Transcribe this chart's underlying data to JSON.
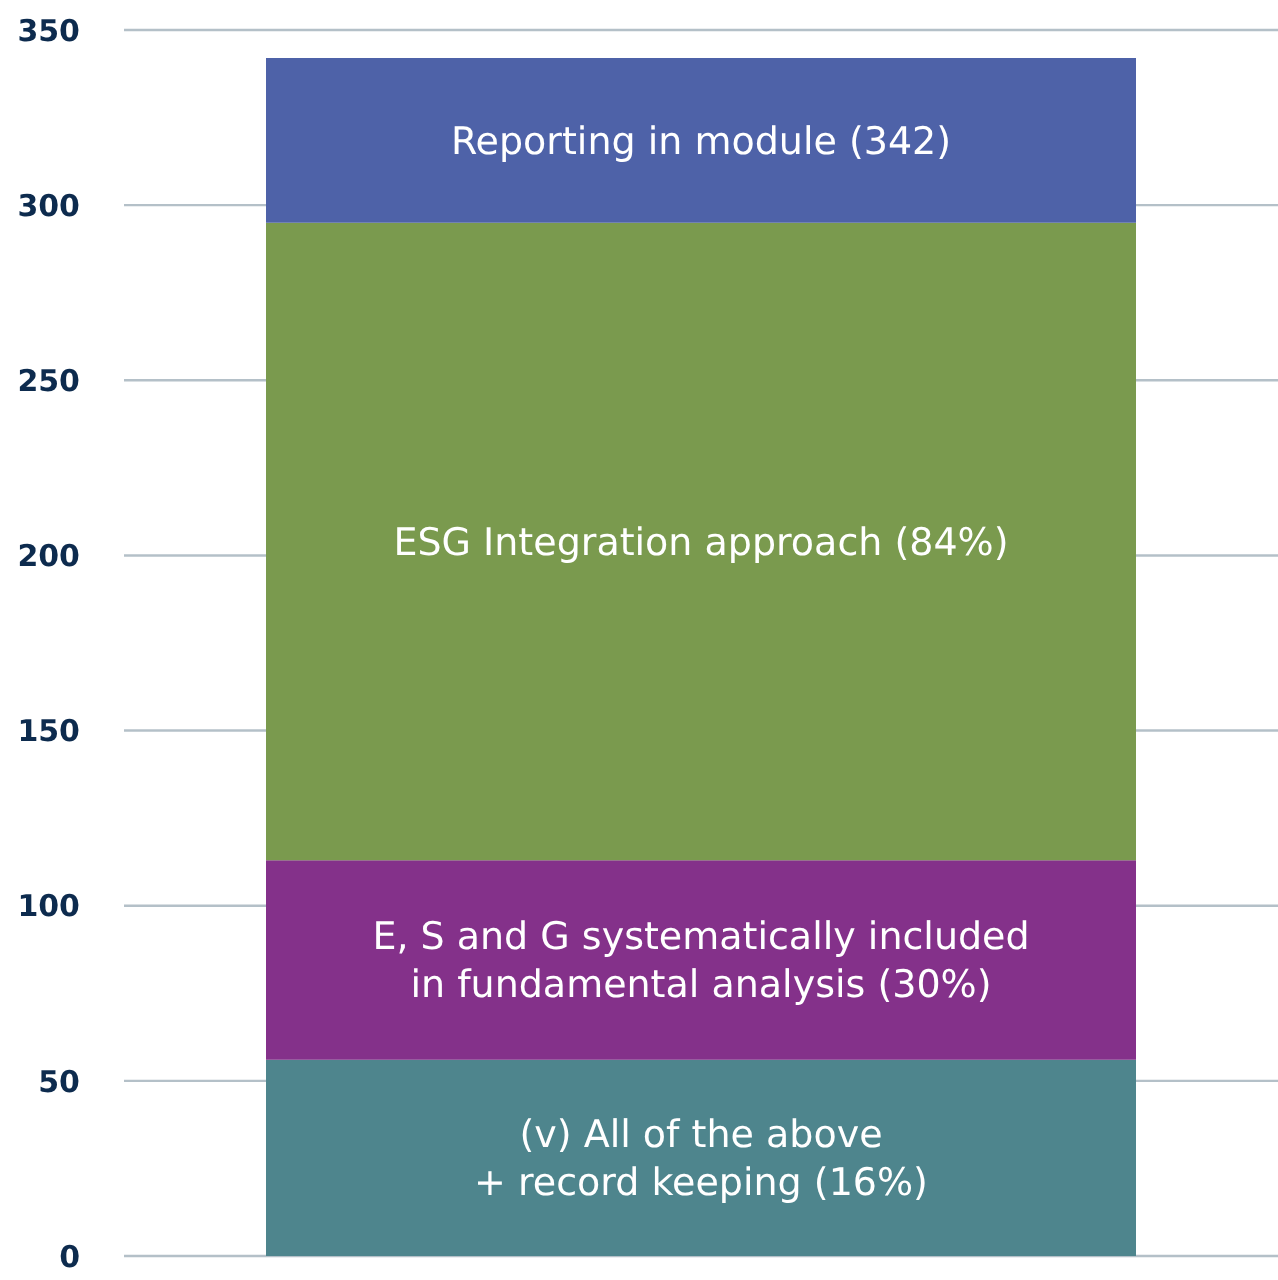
{
  "chart_data": {
    "type": "bar",
    "stacked": true,
    "categories": [
      null
    ],
    "series": [
      {
        "name": "(v) All of the above\n+ record keeping (16%)",
        "color": "#4e858d",
        "values": [
          56
        ]
      },
      {
        "name": "E, S and G systematically included\nin fundamental analysis (30%)",
        "color": "#84318a",
        "values": [
          57
        ]
      },
      {
        "name": "ESG Integration approach (84%)",
        "color": "#7a9a4e",
        "values": [
          182
        ]
      },
      {
        "name": "Reporting in module (342)",
        "color": "#4e62a8",
        "values": [
          47
        ]
      }
    ],
    "ylim": [
      0,
      350
    ],
    "yticks": [
      0,
      50,
      100,
      150,
      200,
      250,
      300,
      350
    ],
    "grid": "y",
    "legend": false,
    "tick_labels": "y"
  }
}
